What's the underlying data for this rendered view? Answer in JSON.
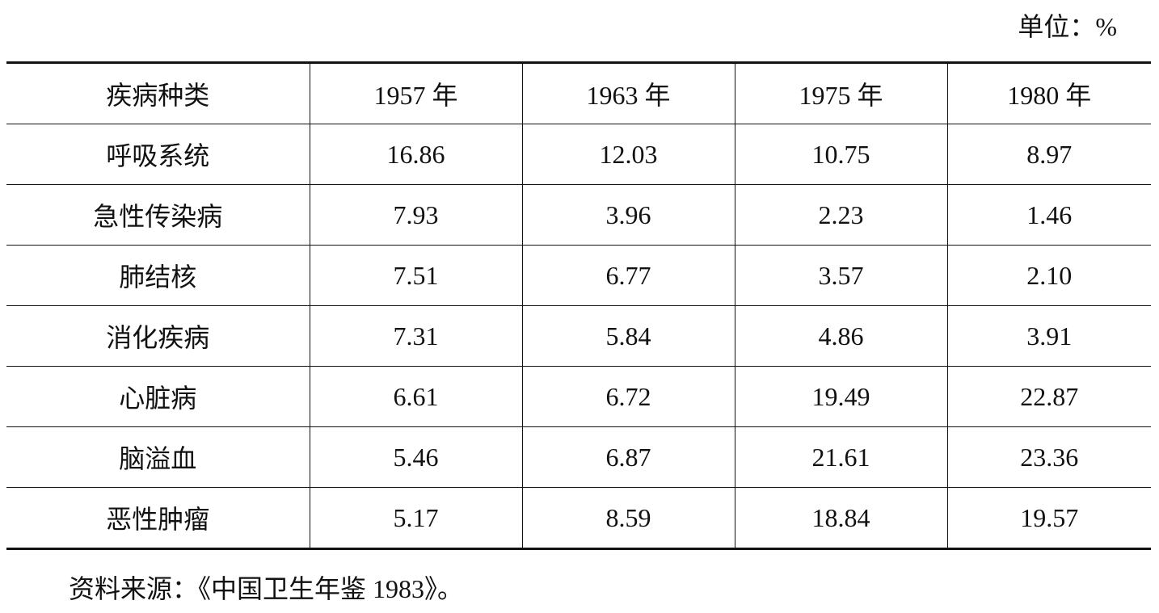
{
  "unit": "单位：%",
  "table": {
    "header": [
      "疾病种类",
      "1957 年",
      "1963 年",
      "1975 年",
      "1980 年"
    ],
    "rows": [
      [
        "呼吸系统",
        "16.86",
        "12.03",
        "10.75",
        "8.97"
      ],
      [
        "急性传染病",
        "7.93",
        "3.96",
        "2.23",
        "1.46"
      ],
      [
        "肺结核",
        "7.51",
        "6.77",
        "3.57",
        "2.10"
      ],
      [
        "消化疾病",
        "7.31",
        "5.84",
        "4.86",
        "3.91"
      ],
      [
        "心脏病",
        "6.61",
        "6.72",
        "19.49",
        "22.87"
      ],
      [
        "脑溢血",
        "5.46",
        "6.87",
        "21.61",
        "23.36"
      ],
      [
        "恶性肿瘤",
        "5.17",
        "8.59",
        "18.84",
        "19.57"
      ]
    ]
  },
  "source": "资料来源：《中国卫生年鉴 1983》。"
}
